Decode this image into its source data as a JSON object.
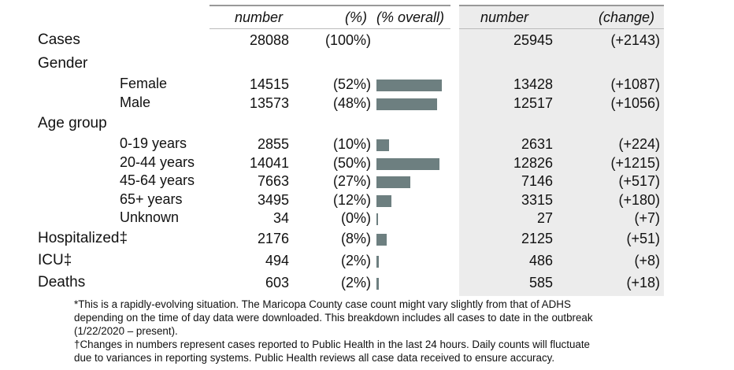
{
  "headers": {
    "number_left": "number",
    "pct": "(%)",
    "pct_overall": "(% overall)",
    "number_right": "number",
    "change": "(change)"
  },
  "rows": [
    {
      "label": "Cases",
      "indent": false,
      "number": "28088",
      "pct": "(100%)",
      "bar": null,
      "prev": "25945",
      "change": "(+2143)"
    },
    {
      "label": "Gender",
      "indent": false,
      "header_only": true
    },
    {
      "label": "Female",
      "indent": true,
      "number": "14515",
      "pct": "(52%)",
      "bar": 52,
      "prev": "13428",
      "change": "(+1087)"
    },
    {
      "label": "Male",
      "indent": true,
      "number": "13573",
      "pct": "(48%)",
      "bar": 48,
      "prev": "12517",
      "change": "(+1056)"
    },
    {
      "label": "Age group",
      "indent": false,
      "header_only": true
    },
    {
      "label": "0-19 years",
      "indent": true,
      "number": "2855",
      "pct": "(10%)",
      "bar": 10,
      "prev": "2631",
      "change": "(+224)"
    },
    {
      "label": "20-44 years",
      "indent": true,
      "number": "14041",
      "pct": "(50%)",
      "bar": 50,
      "prev": "12826",
      "change": "(+1215)"
    },
    {
      "label": "45-64 years",
      "indent": true,
      "number": "7663",
      "pct": "(27%)",
      "bar": 27,
      "prev": "7146",
      "change": "(+517)"
    },
    {
      "label": "65+ years",
      "indent": true,
      "number": "3495",
      "pct": "(12%)",
      "bar": 12,
      "prev": "3315",
      "change": "(+180)"
    },
    {
      "label": "Unknown",
      "indent": true,
      "number": "34",
      "pct": "(0%)",
      "bar": 0,
      "prev": "27",
      "change": "(+7)"
    },
    {
      "label": "Hospitalized‡",
      "indent": false,
      "number": "2176",
      "pct": "(8%)",
      "bar": 8,
      "prev": "2125",
      "change": "(+51)"
    },
    {
      "label": "ICU‡",
      "indent": false,
      "number": "494",
      "pct": "(2%)",
      "bar": 2,
      "prev": "486",
      "change": "(+8)"
    },
    {
      "label": "Deaths",
      "indent": false,
      "number": "603",
      "pct": "(2%)",
      "bar": 2,
      "prev": "585",
      "change": "(+18)"
    }
  ],
  "footnotes": {
    "line1": "*This is a rapidly-evolving situation. The Maricopa County case count might vary slightly from that of ADHS",
    "line2": "depending on the time of day data were downloaded.  This breakdown includes all cases to date in the outbreak",
    "line3": "(1/22/2020 – present).",
    "line4": "†Changes in numbers represent cases reported to Public Health in the last 24 hours. Daily counts will fluctuate",
    "line5": "due to variances in reporting systems. Public Health reviews all case data received to ensure accuracy."
  },
  "colors": {
    "bar": "#6d7f80",
    "panel": "#ececec"
  }
}
